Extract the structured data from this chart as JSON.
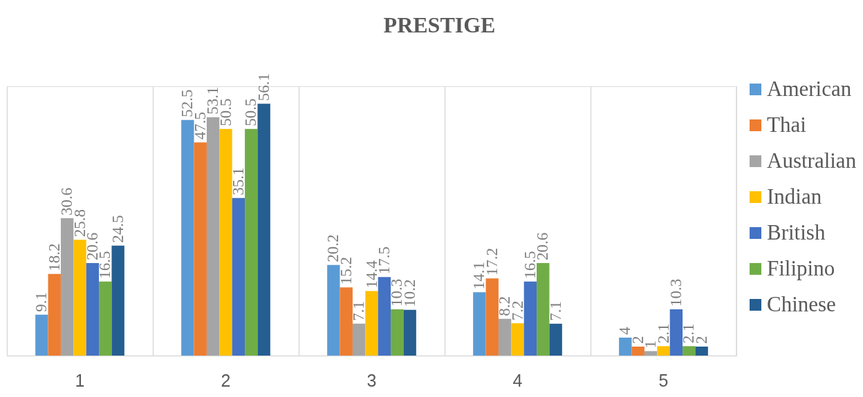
{
  "chart_data": {
    "type": "bar",
    "title": "PRESTIGE",
    "categories": [
      "1",
      "2",
      "3",
      "4",
      "5"
    ],
    "series": [
      {
        "name": "American",
        "color": "#5b9bd5",
        "values": [
          9.1,
          52.5,
          20.2,
          14.1,
          4
        ]
      },
      {
        "name": "Thai",
        "color": "#ed7d31",
        "values": [
          18.2,
          47.5,
          15.2,
          17.2,
          2
        ]
      },
      {
        "name": "Australian",
        "color": "#a5a5a5",
        "values": [
          30.6,
          53.1,
          7.1,
          8.2,
          1
        ]
      },
      {
        "name": "Indian",
        "color": "#ffc000",
        "values": [
          25.8,
          50.5,
          14.4,
          7.2,
          2.1
        ]
      },
      {
        "name": "British",
        "color": "#4472c4",
        "values": [
          20.6,
          35.1,
          17.5,
          16.5,
          10.3
        ]
      },
      {
        "name": "Filipino",
        "color": "#70ad47",
        "values": [
          16.5,
          50.5,
          10.3,
          20.6,
          2.1
        ]
      },
      {
        "name": "Chinese",
        "color": "#255e91",
        "values": [
          24.5,
          56.1,
          10.2,
          7.1,
          2
        ]
      }
    ],
    "ylim": [
      0,
      60
    ],
    "data_labels": true,
    "grid": "x",
    "legend": "right",
    "tick_labels": "x"
  }
}
